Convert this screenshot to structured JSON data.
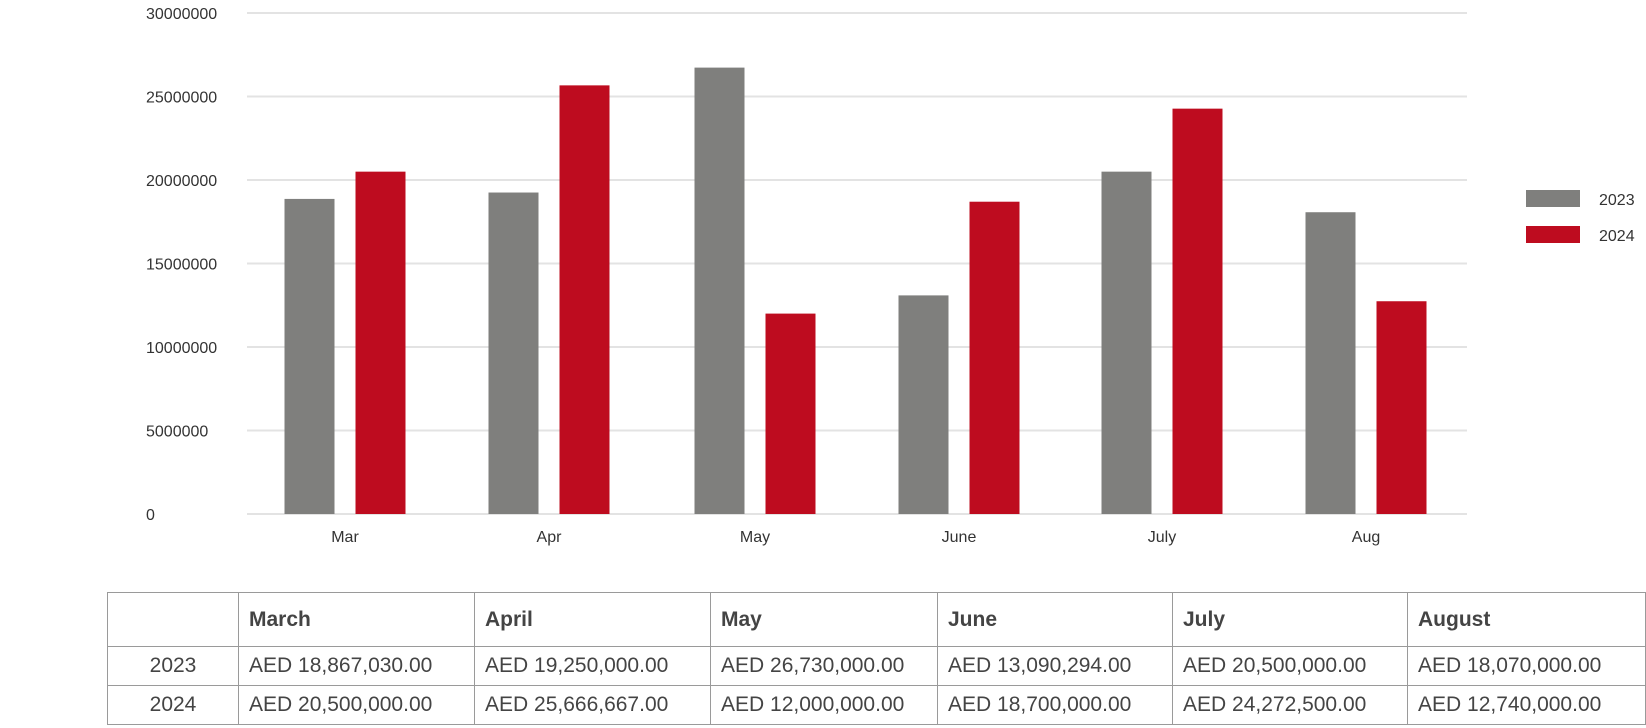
{
  "chart_data": {
    "type": "bar",
    "categories": [
      "Mar",
      "Apr",
      "May",
      "June",
      "July",
      "Aug"
    ],
    "series": [
      {
        "name": "2023",
        "color": "#7f7f7d",
        "values": [
          18867030,
          19250000,
          26730000,
          13090294,
          20500000,
          18070000
        ]
      },
      {
        "name": "2024",
        "color": "#be0c1f",
        "values": [
          20500000,
          25666667,
          12000000,
          18700000,
          24272500,
          12740000
        ]
      }
    ],
    "yticks": [
      "30000000",
      "25000000",
      "20000000",
      "15000000",
      "10000000",
      "5000000",
      "0"
    ],
    "ylim": [
      0,
      30000000
    ],
    "grid": true,
    "legend": "right"
  },
  "table": {
    "headers": [
      "",
      "March",
      "April",
      "May",
      "June",
      "July",
      "August"
    ],
    "rows": [
      {
        "year": "2023",
        "cells": [
          "AED 18,867,030.00",
          "AED 19,250,000.00",
          "AED 26,730,000.00",
          "AED 13,090,294.00",
          "AED 20,500,000.00",
          "AED 18,070,000.00"
        ]
      },
      {
        "year": "2024",
        "cells": [
          "AED 20,500,000.00",
          "AED 25,666,667.00",
          "AED 12,000,000.00",
          "AED 18,700,000.00",
          "AED 24,272,500.00",
          "AED 12,740,000.00"
        ]
      }
    ]
  }
}
